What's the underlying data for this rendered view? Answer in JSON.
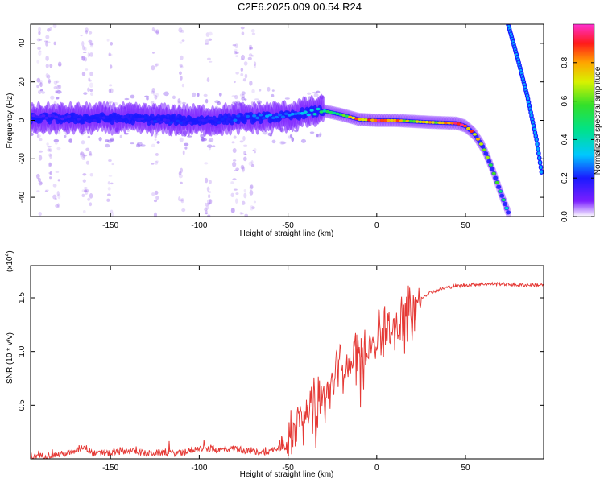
{
  "title": "C2E6.2025.009.00.54.R24",
  "colors": {
    "snr_line": "#e53935",
    "frame": "#000000"
  },
  "chart_data": [
    {
      "type": "heatmap",
      "xlabel": "Height of straight line (km)",
      "ylabel": "Frequency (Hz)",
      "xlim": [
        -195,
        94
      ],
      "ylim": [
        -50,
        50
      ],
      "xticks": [
        -150,
        -100,
        -50,
        0,
        50
      ],
      "xtick_labels": [
        "-150",
        "-100",
        "-50",
        "0",
        "50"
      ],
      "yticks": [
        -40,
        -20,
        0,
        20,
        40
      ],
      "ytick_labels": [
        "-40",
        "-20",
        "0",
        "20",
        "40"
      ],
      "colorbar": {
        "label": "Normalized spectral amplitude",
        "range": [
          0,
          1
        ],
        "ticks": [
          0.0,
          0.2,
          0.4,
          0.6,
          0.8
        ],
        "tick_labels": [
          "0.0",
          "0.2",
          "0.4",
          "0.6",
          "0.8"
        ]
      },
      "main_trace": {
        "x": [
          -195,
          -150,
          -100,
          -75,
          -50,
          -40,
          -30,
          -20,
          -10,
          0,
          10,
          20,
          30,
          45,
          50,
          55,
          60,
          65,
          70,
          75
        ],
        "frequency": [
          1,
          1,
          0,
          1,
          2,
          4,
          5,
          3,
          0.5,
          0,
          0,
          -0.5,
          -1,
          -1.5,
          -3,
          -7,
          -14,
          -25,
          -38,
          -50
        ],
        "amplitude": [
          0.15,
          0.2,
          0.2,
          0.25,
          0.3,
          0.35,
          0.5,
          0.6,
          0.85,
          0.95,
          0.9,
          0.7,
          0.75,
          0.95,
          0.85,
          0.8,
          0.7,
          0.6,
          0.5,
          0.4
        ]
      },
      "secondary_trace": {
        "x": [
          74,
          80,
          85,
          90,
          93
        ],
        "frequency": [
          50,
          30,
          12,
          -10,
          -28
        ],
        "amplitude": [
          0.3,
          0.3,
          0.3,
          0.3,
          0.3
        ]
      }
    },
    {
      "type": "line",
      "xlabel": "Height of straight line (km)",
      "ylabel": "SNR (10 * v/v)",
      "y_multiplier_label": "(x10",
      "y_multiplier_exp": "4",
      "y_multiplier_close": ")",
      "xlim": [
        -195,
        94
      ],
      "ylim": [
        0,
        1.8
      ],
      "xticks": [
        -150,
        -100,
        -50,
        0,
        50
      ],
      "xtick_labels": [
        "-150",
        "-100",
        "-50",
        "0",
        "50"
      ],
      "yticks": [
        0.5,
        1.0,
        1.5
      ],
      "ytick_labels": [
        "0.5",
        "1.0",
        "1.5"
      ],
      "series": [
        {
          "x": [
            -195,
            -180,
            -170,
            -165,
            -160,
            -150,
            -140,
            -130,
            -120,
            -110,
            -100,
            -90,
            -80,
            -70,
            -60,
            -55,
            -50,
            -45,
            -40,
            -35,
            -30,
            -25,
            -20,
            -15,
            -10,
            -5,
            0,
            5,
            10,
            15,
            20,
            25,
            30,
            40,
            50,
            60,
            70,
            80,
            94
          ],
          "y": [
            0.02,
            0.04,
            0.06,
            0.12,
            0.05,
            0.05,
            0.08,
            0.05,
            0.06,
            0.05,
            0.1,
            0.08,
            0.1,
            0.06,
            0.07,
            0.12,
            0.2,
            0.35,
            0.45,
            0.5,
            0.6,
            0.7,
            0.85,
            0.9,
            1.1,
            1.05,
            1.15,
            1.2,
            1.25,
            1.35,
            1.45,
            1.5,
            1.55,
            1.6,
            1.62,
            1.63,
            1.63,
            1.62,
            1.62
          ]
        }
      ]
    }
  ]
}
